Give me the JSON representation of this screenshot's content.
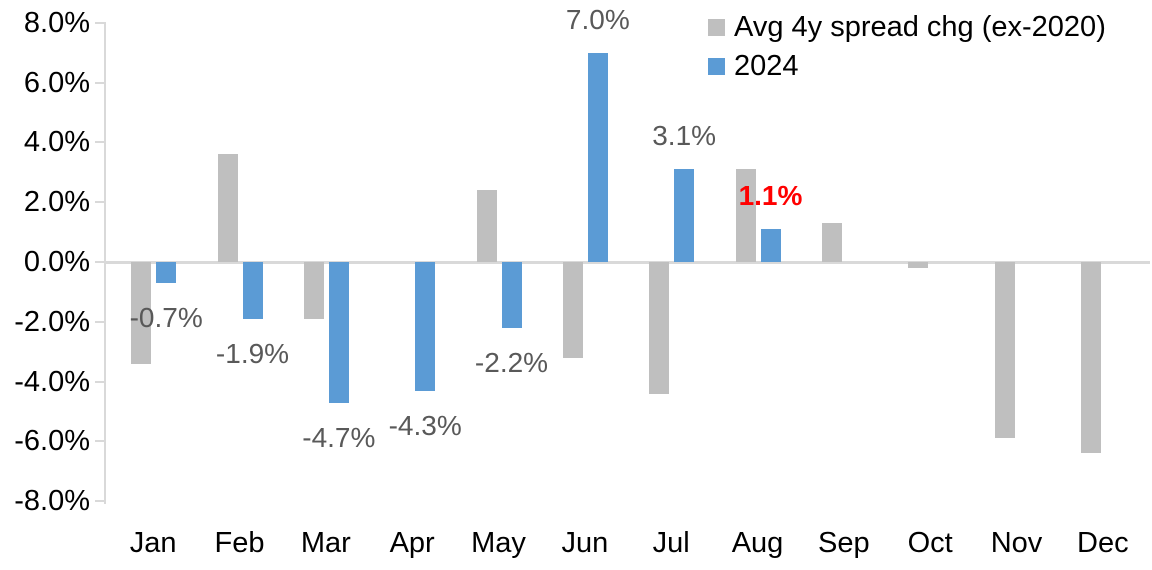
{
  "chart_data": {
    "type": "bar",
    "title": "",
    "xlabel": "",
    "ylabel": "",
    "categories": [
      "Jan",
      "Feb",
      "Mar",
      "Apr",
      "May",
      "Jun",
      "Jul",
      "Aug",
      "Sep",
      "Oct",
      "Nov",
      "Dec"
    ],
    "series": [
      {
        "name": "Avg 4y spread chg (ex-2020)",
        "color": "#BFBFBF",
        "values": [
          -3.4,
          3.6,
          -1.9,
          0.0,
          2.4,
          -3.2,
          -4.4,
          3.1,
          1.3,
          -0.2,
          -5.9,
          -6.4
        ]
      },
      {
        "name": "2024",
        "color": "#5B9BD5",
        "values": [
          -0.7,
          -1.9,
          -4.7,
          -4.3,
          -2.2,
          7.0,
          3.1,
          1.1,
          null,
          null,
          null,
          null
        ]
      }
    ],
    "data_labels": {
      "attached_to_series": "2024",
      "entries": [
        {
          "category": "Jan",
          "text": "-0.7%",
          "color": "#595959",
          "bold": false
        },
        {
          "category": "Feb",
          "text": "-1.9%",
          "color": "#595959",
          "bold": false
        },
        {
          "category": "Mar",
          "text": "-4.7%",
          "color": "#595959",
          "bold": false
        },
        {
          "category": "Apr",
          "text": "-4.3%",
          "color": "#595959",
          "bold": false
        },
        {
          "category": "May",
          "text": "-2.2%",
          "color": "#595959",
          "bold": false
        },
        {
          "category": "Jun",
          "text": "7.0%",
          "color": "#595959",
          "bold": false
        },
        {
          "category": "Jul",
          "text": "3.1%",
          "color": "#595959",
          "bold": false
        },
        {
          "category": "Aug",
          "text": "1.1%",
          "color": "#FF0000",
          "bold": true
        }
      ]
    },
    "y_axis": {
      "min": -8,
      "max": 8,
      "tick_step": 2,
      "tick_labels": [
        "8.0%",
        "6.0%",
        "4.0%",
        "2.0%",
        "0.0%",
        "-2.0%",
        "-4.0%",
        "-6.0%",
        "-8.0%"
      ]
    },
    "legend_position": "top-right",
    "grid": false,
    "colors": {
      "axis_line": "#D9D9D9",
      "tick_text": "#000000",
      "data_label_default": "#595959",
      "data_label_highlight": "#FF0000"
    }
  }
}
